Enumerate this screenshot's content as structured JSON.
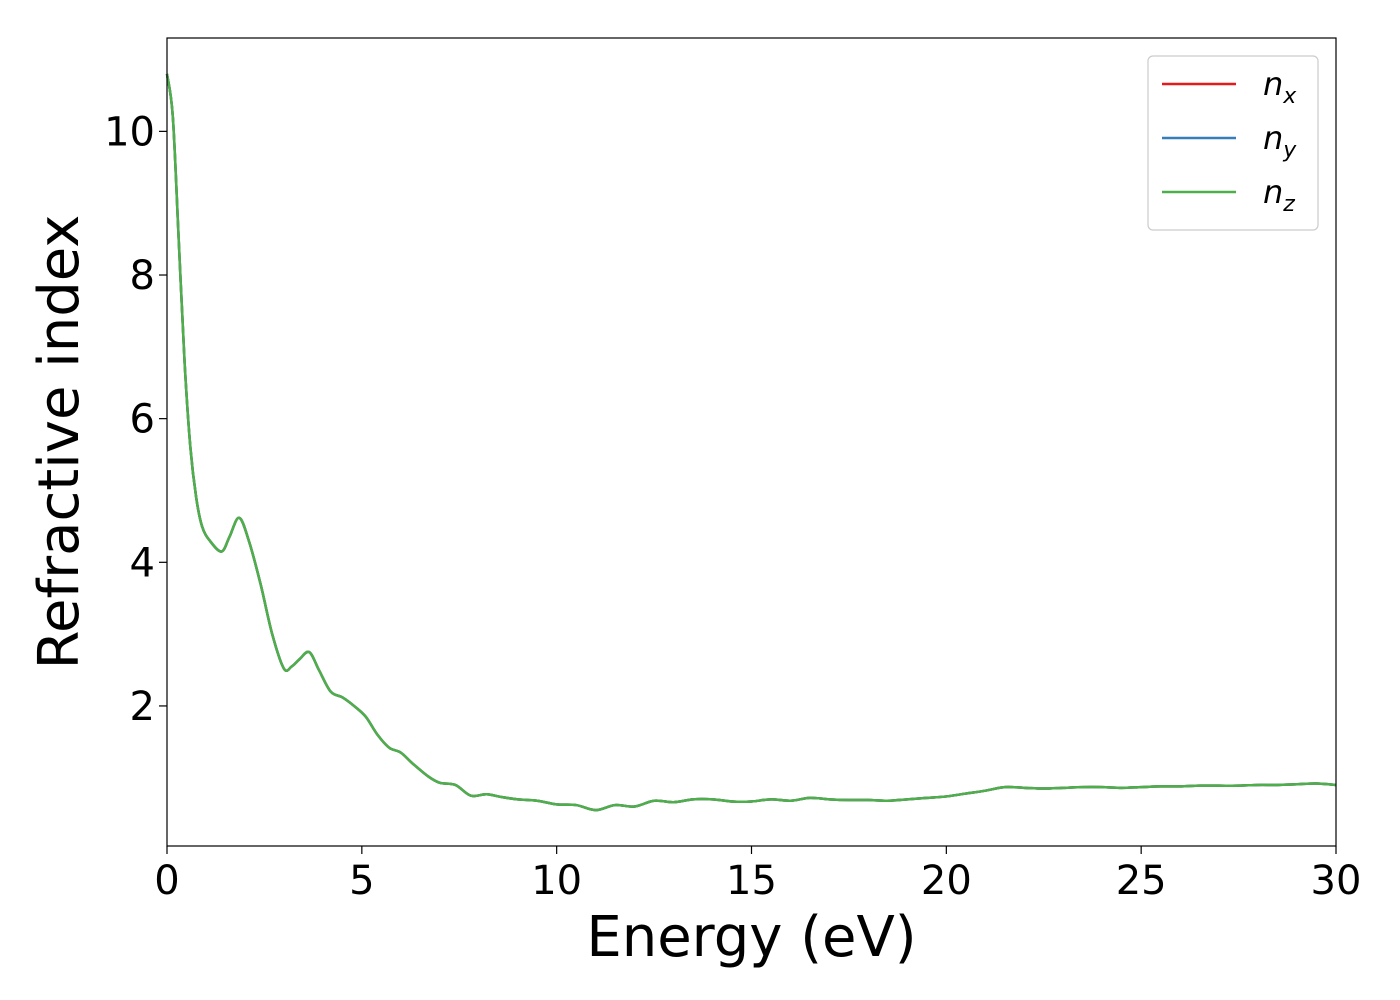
{
  "chart_data": {
    "type": "line",
    "xlabel": "Energy (eV)",
    "ylabel": "Refractive index",
    "xlim": [
      0,
      30
    ],
    "ylim": [
      0.05,
      11.3
    ],
    "x_ticks": [
      0,
      5,
      10,
      15,
      20,
      25,
      30
    ],
    "y_ticks": [
      2,
      4,
      6,
      8,
      10
    ],
    "grid": false,
    "legend_position": "top-right",
    "series": [
      {
        "name": "n_x",
        "legend_base": "n",
        "legend_sub": "x",
        "color": "#e41a1c",
        "x": [
          0,
          0.15,
          0.3,
          0.45,
          0.6,
          0.75,
          0.9,
          1.1,
          1.4,
          1.6,
          1.85,
          2.1,
          2.4,
          2.7,
          3.0,
          3.2,
          3.4,
          3.65,
          3.9,
          4.2,
          4.5,
          4.8,
          5.1,
          5.4,
          5.7,
          6.0,
          6.3,
          6.7,
          7.0,
          7.4,
          7.8,
          8.2,
          8.6,
          9.0,
          9.5,
          10.0,
          10.5,
          11.0,
          11.5,
          12.0,
          12.5,
          13.0,
          13.5,
          14.0,
          14.5,
          15.0,
          15.5,
          16.0,
          16.5,
          17.0,
          17.5,
          18.0,
          18.5,
          19.0,
          19.5,
          20.0,
          20.5,
          21.0,
          21.5,
          22.0,
          22.5,
          23.0,
          23.5,
          24.0,
          24.5,
          25.0,
          25.5,
          26.0,
          26.5,
          27.0,
          27.5,
          28.0,
          28.5,
          29.0,
          29.5,
          30.0
        ],
        "values": [
          10.8,
          10.2,
          8.5,
          6.8,
          5.6,
          4.9,
          4.5,
          4.3,
          4.15,
          4.35,
          4.62,
          4.3,
          3.7,
          3.0,
          2.52,
          2.55,
          2.65,
          2.75,
          2.5,
          2.2,
          2.12,
          2.0,
          1.85,
          1.6,
          1.42,
          1.35,
          1.2,
          1.02,
          0.93,
          0.9,
          0.75,
          0.77,
          0.73,
          0.7,
          0.68,
          0.63,
          0.62,
          0.55,
          0.62,
          0.6,
          0.68,
          0.66,
          0.7,
          0.7,
          0.67,
          0.67,
          0.7,
          0.68,
          0.72,
          0.7,
          0.69,
          0.69,
          0.68,
          0.7,
          0.72,
          0.74,
          0.78,
          0.82,
          0.87,
          0.86,
          0.85,
          0.86,
          0.87,
          0.87,
          0.86,
          0.87,
          0.88,
          0.88,
          0.89,
          0.89,
          0.89,
          0.9,
          0.9,
          0.91,
          0.92,
          0.9
        ]
      },
      {
        "name": "n_y",
        "legend_base": "n",
        "legend_sub": "y",
        "color": "#377eb8",
        "x": [
          0,
          0.15,
          0.3,
          0.45,
          0.6,
          0.75,
          0.9,
          1.1,
          1.4,
          1.6,
          1.85,
          2.1,
          2.4,
          2.7,
          3.0,
          3.2,
          3.4,
          3.65,
          3.9,
          4.2,
          4.5,
          4.8,
          5.1,
          5.4,
          5.7,
          6.0,
          6.3,
          6.7,
          7.0,
          7.4,
          7.8,
          8.2,
          8.6,
          9.0,
          9.5,
          10.0,
          10.5,
          11.0,
          11.5,
          12.0,
          12.5,
          13.0,
          13.5,
          14.0,
          14.5,
          15.0,
          15.5,
          16.0,
          16.5,
          17.0,
          17.5,
          18.0,
          18.5,
          19.0,
          19.5,
          20.0,
          20.5,
          21.0,
          21.5,
          22.0,
          22.5,
          23.0,
          23.5,
          24.0,
          24.5,
          25.0,
          25.5,
          26.0,
          26.5,
          27.0,
          27.5,
          28.0,
          28.5,
          29.0,
          29.5,
          30.0
        ],
        "values": [
          10.8,
          10.2,
          8.5,
          6.8,
          5.6,
          4.9,
          4.5,
          4.3,
          4.15,
          4.35,
          4.62,
          4.3,
          3.7,
          3.0,
          2.52,
          2.55,
          2.65,
          2.75,
          2.5,
          2.2,
          2.12,
          2.0,
          1.85,
          1.6,
          1.42,
          1.35,
          1.2,
          1.02,
          0.93,
          0.9,
          0.75,
          0.77,
          0.73,
          0.7,
          0.68,
          0.63,
          0.62,
          0.55,
          0.62,
          0.6,
          0.68,
          0.66,
          0.7,
          0.7,
          0.67,
          0.67,
          0.7,
          0.68,
          0.72,
          0.7,
          0.69,
          0.69,
          0.68,
          0.7,
          0.72,
          0.74,
          0.78,
          0.82,
          0.87,
          0.86,
          0.85,
          0.86,
          0.87,
          0.87,
          0.86,
          0.87,
          0.88,
          0.88,
          0.89,
          0.89,
          0.89,
          0.9,
          0.9,
          0.91,
          0.92,
          0.9
        ]
      },
      {
        "name": "n_z",
        "legend_base": "n",
        "legend_sub": "z",
        "color": "#4daf4a",
        "x": [
          0,
          0.15,
          0.3,
          0.45,
          0.6,
          0.75,
          0.9,
          1.1,
          1.4,
          1.6,
          1.85,
          2.1,
          2.4,
          2.7,
          3.0,
          3.2,
          3.4,
          3.65,
          3.9,
          4.2,
          4.5,
          4.8,
          5.1,
          5.4,
          5.7,
          6.0,
          6.3,
          6.7,
          7.0,
          7.4,
          7.8,
          8.2,
          8.6,
          9.0,
          9.5,
          10.0,
          10.5,
          11.0,
          11.5,
          12.0,
          12.5,
          13.0,
          13.5,
          14.0,
          14.5,
          15.0,
          15.5,
          16.0,
          16.5,
          17.0,
          17.5,
          18.0,
          18.5,
          19.0,
          19.5,
          20.0,
          20.5,
          21.0,
          21.5,
          22.0,
          22.5,
          23.0,
          23.5,
          24.0,
          24.5,
          25.0,
          25.5,
          26.0,
          26.5,
          27.0,
          27.5,
          28.0,
          28.5,
          29.0,
          29.5,
          30.0
        ],
        "values": [
          10.8,
          10.2,
          8.5,
          6.8,
          5.6,
          4.9,
          4.5,
          4.3,
          4.15,
          4.35,
          4.62,
          4.3,
          3.7,
          3.0,
          2.52,
          2.55,
          2.65,
          2.75,
          2.5,
          2.2,
          2.12,
          2.0,
          1.85,
          1.6,
          1.42,
          1.35,
          1.2,
          1.02,
          0.93,
          0.9,
          0.75,
          0.77,
          0.73,
          0.7,
          0.68,
          0.63,
          0.62,
          0.55,
          0.62,
          0.6,
          0.68,
          0.66,
          0.7,
          0.7,
          0.67,
          0.67,
          0.7,
          0.68,
          0.72,
          0.7,
          0.69,
          0.69,
          0.68,
          0.7,
          0.72,
          0.74,
          0.78,
          0.82,
          0.87,
          0.86,
          0.85,
          0.86,
          0.87,
          0.87,
          0.86,
          0.87,
          0.88,
          0.88,
          0.89,
          0.89,
          0.89,
          0.9,
          0.9,
          0.91,
          0.92,
          0.9
        ]
      }
    ]
  }
}
